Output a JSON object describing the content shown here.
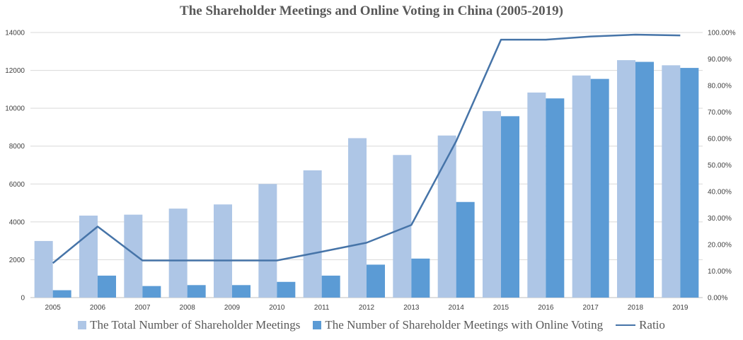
{
  "chart_data": {
    "type": "bar",
    "title": "The Shareholder Meetings and Online Voting in China (2005-2019)",
    "categories": [
      "2005",
      "2006",
      "2007",
      "2008",
      "2009",
      "2010",
      "2011",
      "2012",
      "2013",
      "2014",
      "2015",
      "2016",
      "2017",
      "2018",
      "2019"
    ],
    "series": [
      {
        "name": "The Total Number of Shareholder Meetings",
        "type": "bar",
        "axis": "left",
        "color": "#AEC6E6",
        "values": [
          2990,
          4330,
          4380,
          4700,
          4920,
          6000,
          6720,
          8420,
          7530,
          8560,
          9850,
          10830,
          11730,
          12540,
          12270
        ]
      },
      {
        "name": "The Number of Shareholder Meetings with Online Voting",
        "type": "bar",
        "axis": "left",
        "color": "#5B9BD5",
        "values": [
          390,
          1160,
          610,
          660,
          660,
          830,
          1160,
          1740,
          2060,
          5050,
          9580,
          10520,
          11550,
          12450,
          12130
        ]
      },
      {
        "name": "Ratio",
        "type": "line",
        "axis": "right",
        "color": "#4674A8",
        "values": [
          13.0,
          26.8,
          14.0,
          14.0,
          14.0,
          14.0,
          17.3,
          20.7,
          27.4,
          59.0,
          97.3,
          97.3,
          98.5,
          99.2,
          98.9
        ]
      }
    ],
    "y_left": {
      "min": 0,
      "max": 14000,
      "ticks": [
        "0",
        "2000",
        "4000",
        "6000",
        "8000",
        "10000",
        "12000",
        "14000"
      ]
    },
    "y_right": {
      "min": 0,
      "max": 100,
      "ticks": [
        "0.00%",
        "10.00%",
        "20.00%",
        "30.00%",
        "40.00%",
        "50.00%",
        "60.00%",
        "70.00%",
        "80.00%",
        "90.00%",
        "100.00%"
      ]
    },
    "grid": true,
    "legend_position": "bottom",
    "xlabel": "",
    "ylabel": ""
  }
}
